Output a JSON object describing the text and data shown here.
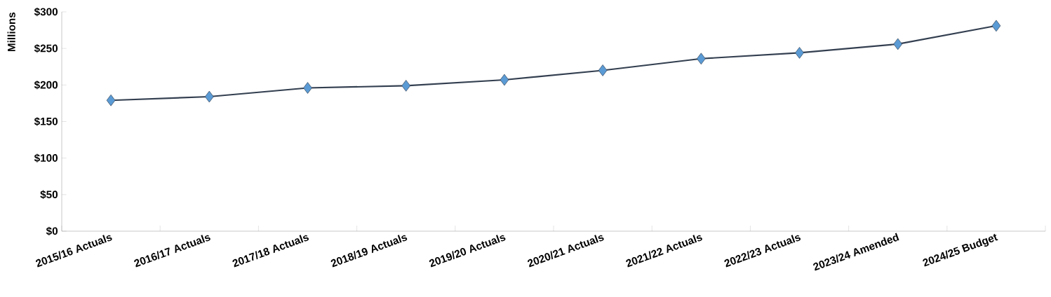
{
  "chart_data": {
    "type": "line",
    "ylabel": "Millions",
    "categories": [
      "2015/16 Actuals",
      "2016/17 Actuals",
      "2017/18 Actuals",
      "2018/19 Actuals",
      "2019/20 Actuals",
      "2020/21 Actuals",
      "2021/22 Actuals",
      "2022/23 Actuals",
      "2023/24 Amended",
      "2024/25 Budget"
    ],
    "series": [
      {
        "color": "#333f50",
        "values": [
          179,
          184,
          196,
          199,
          207,
          220,
          236,
          244,
          256,
          281
        ]
      }
    ],
    "marker": "diamond",
    "ylim": [
      0,
      300
    ],
    "yticks": [
      {
        "value": 0,
        "label": "$0"
      },
      {
        "value": 50,
        "label": "$50"
      },
      {
        "value": 100,
        "label": "$100"
      },
      {
        "value": 150,
        "label": "$150"
      },
      {
        "value": 200,
        "label": "$200"
      },
      {
        "value": 250,
        "label": "$250"
      },
      {
        "value": 300,
        "label": "$300"
      }
    ]
  }
}
